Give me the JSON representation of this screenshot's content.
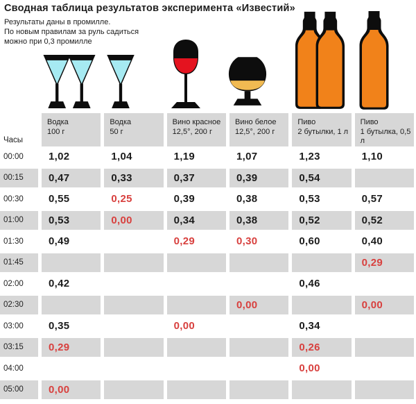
{
  "title": "Сводная таблица результатов эксперимента «Известий»",
  "subtitle_lines": [
    "Результаты даны в промилле.",
    "По новым правилам  за руль садиться",
    "можно при 0,3 промилле"
  ],
  "hours_label": "Часы",
  "columns": [
    {
      "name": "Водка",
      "detail": "100 г",
      "icon": "vodka-two-shot-glasses-icon"
    },
    {
      "name": "Водка",
      "detail": "50 г",
      "icon": "vodka-shot-glass-icon"
    },
    {
      "name": "Вино красное",
      "detail": "12,5°, 200 г",
      "icon": "red-wine-glass-icon"
    },
    {
      "name": "Вино белое",
      "detail": "12,5°, 200 г",
      "icon": "white-wine-glass-icon"
    },
    {
      "name": "Пиво",
      "detail": "2 бутылки, 1 л",
      "icon": "two-beer-bottles-icon"
    },
    {
      "name": "Пиво",
      "detail": "1 бутылка, 0,5 л",
      "icon": "beer-bottle-icon"
    }
  ],
  "colors": {
    "row_gray": "#d7d7d7",
    "red_value": "#d8403e",
    "text": "#1c1c1c",
    "vodka_liquid": "#a6eaf2",
    "red_wine": "#e4131f",
    "white_wine": "#f1ba52",
    "beer_orange": "#f1821a",
    "glass_black": "#0d0d0d"
  },
  "chart_data": {
    "type": "table",
    "title": "Сводная таблица результатов эксперимента «Известий»",
    "note": "Результаты даны в промилле. По новым правилам за руль садиться можно при 0,3 промилле",
    "unit": "промилле",
    "row_header": "Часы",
    "columns": [
      "Водка 100 г",
      "Водка 50 г",
      "Вино красное 12,5°, 200 г",
      "Вино белое 12,5°, 200 г",
      "Пиво 2 бутылки, 1 л",
      "Пиво 1 бутылка, 0,5 л"
    ],
    "rows": [
      {
        "time": "00:00",
        "values": [
          "1,02",
          "1,04",
          "1,19",
          "1,07",
          "1,23",
          "1,10"
        ],
        "red": [
          false,
          false,
          false,
          false,
          false,
          false
        ]
      },
      {
        "time": "00:15",
        "values": [
          "0,47",
          "0,33",
          "0,37",
          "0,39",
          "0,54",
          null
        ],
        "red": [
          false,
          false,
          false,
          false,
          false,
          false
        ]
      },
      {
        "time": "00:30",
        "values": [
          "0,55",
          "0,25",
          "0,39",
          "0,38",
          "0,53",
          "0,57"
        ],
        "red": [
          false,
          true,
          false,
          false,
          false,
          false
        ]
      },
      {
        "time": "01:00",
        "values": [
          "0,53",
          "0,00",
          "0,34",
          "0,38",
          "0,52",
          "0,52"
        ],
        "red": [
          false,
          true,
          false,
          false,
          false,
          false
        ]
      },
      {
        "time": "01:30",
        "values": [
          "0,49",
          null,
          "0,29",
          "0,30",
          "0,60",
          "0,40"
        ],
        "red": [
          false,
          false,
          true,
          true,
          false,
          false
        ]
      },
      {
        "time": "01:45",
        "values": [
          null,
          null,
          null,
          null,
          null,
          "0,29"
        ],
        "red": [
          false,
          false,
          false,
          false,
          false,
          true
        ]
      },
      {
        "time": "02:00",
        "values": [
          "0,42",
          null,
          null,
          null,
          "0,46",
          null
        ],
        "red": [
          false,
          false,
          false,
          false,
          false,
          false
        ]
      },
      {
        "time": "02:30",
        "values": [
          null,
          null,
          null,
          "0,00",
          null,
          "0,00"
        ],
        "red": [
          false,
          false,
          false,
          true,
          false,
          true
        ]
      },
      {
        "time": "03:00",
        "values": [
          "0,35",
          null,
          "0,00",
          null,
          "0,34",
          null
        ],
        "red": [
          false,
          false,
          true,
          false,
          false,
          false
        ]
      },
      {
        "time": "03:15",
        "values": [
          "0,29",
          null,
          null,
          null,
          "0,26",
          null
        ],
        "red": [
          true,
          false,
          false,
          false,
          true,
          false
        ]
      },
      {
        "time": "04:00",
        "values": [
          null,
          null,
          null,
          null,
          "0,00",
          null
        ],
        "red": [
          false,
          false,
          false,
          false,
          true,
          false
        ]
      },
      {
        "time": "05:00",
        "values": [
          "0,00",
          null,
          null,
          null,
          null,
          null
        ],
        "red": [
          true,
          false,
          false,
          false,
          false,
          false
        ]
      }
    ]
  }
}
